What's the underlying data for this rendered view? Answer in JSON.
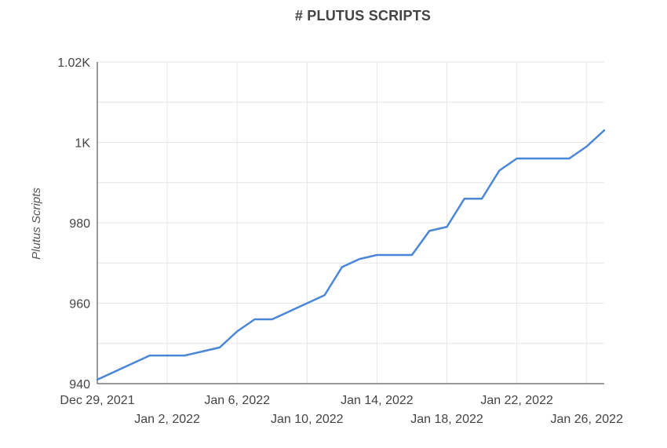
{
  "chart_data": {
    "type": "line",
    "title": "# PLUTUS SCRIPTS",
    "xlabel": "",
    "ylabel": "Plutus Scripts",
    "ylim": [
      940,
      1020
    ],
    "yticks": [
      940,
      960,
      980,
      1000,
      1020
    ],
    "ytick_labels": [
      "940",
      "960",
      "980",
      "1K",
      "1.02K"
    ],
    "xlim": [
      "2021-12-29",
      "2022-01-27"
    ],
    "xticks": [
      {
        "date": "2021-12-29",
        "label": "Dec 29, 2021",
        "row": 0
      },
      {
        "date": "2022-01-02",
        "label": "Jan 2, 2022",
        "row": 1
      },
      {
        "date": "2022-01-06",
        "label": "Jan 6, 2022",
        "row": 0
      },
      {
        "date": "2022-01-10",
        "label": "Jan 10, 2022",
        "row": 1
      },
      {
        "date": "2022-01-14",
        "label": "Jan 14, 2022",
        "row": 0
      },
      {
        "date": "2022-01-18",
        "label": "Jan 18, 2022",
        "row": 1
      },
      {
        "date": "2022-01-22",
        "label": "Jan 22, 2022",
        "row": 0
      },
      {
        "date": "2022-01-26",
        "label": "Jan 26, 2022",
        "row": 1
      }
    ],
    "grid": true,
    "color": "#4a86d8",
    "series": [
      {
        "name": "",
        "points": [
          {
            "x": "2021-12-29",
            "y": 941
          },
          {
            "x": "2022-01-01",
            "y": 947
          },
          {
            "x": "2022-01-02",
            "y": 947
          },
          {
            "x": "2022-01-03",
            "y": 947
          },
          {
            "x": "2022-01-04",
            "y": 948
          },
          {
            "x": "2022-01-05",
            "y": 949
          },
          {
            "x": "2022-01-06",
            "y": 953
          },
          {
            "x": "2022-01-07",
            "y": 956
          },
          {
            "x": "2022-01-08",
            "y": 956
          },
          {
            "x": "2022-01-09",
            "y": 958
          },
          {
            "x": "2022-01-10",
            "y": 960
          },
          {
            "x": "2022-01-11",
            "y": 962
          },
          {
            "x": "2022-01-12",
            "y": 969
          },
          {
            "x": "2022-01-13",
            "y": 971
          },
          {
            "x": "2022-01-14",
            "y": 972
          },
          {
            "x": "2022-01-15",
            "y": 972
          },
          {
            "x": "2022-01-16",
            "y": 972
          },
          {
            "x": "2022-01-17",
            "y": 978
          },
          {
            "x": "2022-01-18",
            "y": 979
          },
          {
            "x": "2022-01-19",
            "y": 986
          },
          {
            "x": "2022-01-20",
            "y": 986
          },
          {
            "x": "2022-01-21",
            "y": 993
          },
          {
            "x": "2022-01-22",
            "y": 996
          },
          {
            "x": "2022-01-23",
            "y": 996
          },
          {
            "x": "2022-01-24",
            "y": 996
          },
          {
            "x": "2022-01-25",
            "y": 996
          },
          {
            "x": "2022-01-26",
            "y": 999
          },
          {
            "x": "2022-01-27",
            "y": 1003
          }
        ]
      }
    ]
  }
}
